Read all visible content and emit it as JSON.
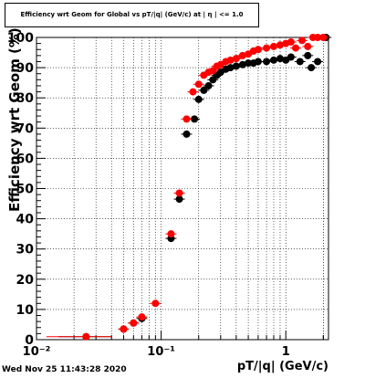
{
  "chart_data": {
    "type": "scatter",
    "title": "Efficiency wrt Geom for Global vs pT/|q| (GeV/c) at | η | <= 1.0",
    "xlabel": "pT/|q| (GeV/c)",
    "ylabel": "Efficiency wrt Geom (%)",
    "xscale": "log",
    "xlim": [
      0.01,
      2.2
    ],
    "ylim": [
      0,
      100
    ],
    "x_ticks": [
      "10⁻²",
      "10⁻¹",
      "1"
    ],
    "y_ticks": [
      "0",
      "10",
      "20",
      "30",
      "40",
      "50",
      "60",
      "70",
      "80",
      "90",
      "100"
    ],
    "grid": true,
    "timestamp": "Wed Nov 25 11:43:28 2020",
    "series": [
      {
        "color": "#000000",
        "points": [
          {
            "x": 0.025,
            "y": 1.0,
            "xerr": [
              0.015,
              0.04
            ]
          },
          {
            "x": 0.05,
            "y": 3.5
          },
          {
            "x": 0.06,
            "y": 5.5
          },
          {
            "x": 0.07,
            "y": 7.0
          },
          {
            "x": 0.12,
            "y": 33.5
          },
          {
            "x": 0.14,
            "y": 46.5
          },
          {
            "x": 0.16,
            "y": 68.0
          },
          {
            "x": 0.185,
            "y": 73.0
          },
          {
            "x": 0.2,
            "y": 79.5
          },
          {
            "x": 0.22,
            "y": 82.5
          },
          {
            "x": 0.24,
            "y": 84.0
          },
          {
            "x": 0.26,
            "y": 86.0
          },
          {
            "x": 0.28,
            "y": 87.5
          },
          {
            "x": 0.3,
            "y": 88.5
          },
          {
            "x": 0.33,
            "y": 89.5
          },
          {
            "x": 0.36,
            "y": 90.0
          },
          {
            "x": 0.4,
            "y": 90.5
          },
          {
            "x": 0.45,
            "y": 91.0
          },
          {
            "x": 0.5,
            "y": 91.5
          },
          {
            "x": 0.55,
            "y": 91.5
          },
          {
            "x": 0.6,
            "y": 92.0
          },
          {
            "x": 0.7,
            "y": 92.0
          },
          {
            "x": 0.8,
            "y": 92.5
          },
          {
            "x": 0.9,
            "y": 93.0
          },
          {
            "x": 1.0,
            "y": 92.5
          },
          {
            "x": 1.1,
            "y": 93.5
          },
          {
            "x": 1.3,
            "y": 92.0
          },
          {
            "x": 1.5,
            "y": 94.0
          },
          {
            "x": 1.6,
            "y": 90.0
          },
          {
            "x": 1.8,
            "y": 92.0
          },
          {
            "x": 2.1,
            "y": 100.0
          }
        ]
      },
      {
        "color": "#ff0000",
        "points": [
          {
            "x": 0.025,
            "y": 1.0,
            "xerr": [
              0.012,
              0.04
            ]
          },
          {
            "x": 0.05,
            "y": 3.5
          },
          {
            "x": 0.06,
            "y": 5.5
          },
          {
            "x": 0.07,
            "y": 7.5
          },
          {
            "x": 0.09,
            "y": 12.0
          },
          {
            "x": 0.12,
            "y": 35.0
          },
          {
            "x": 0.14,
            "y": 48.5
          },
          {
            "x": 0.16,
            "y": 73.0
          },
          {
            "x": 0.18,
            "y": 82.0
          },
          {
            "x": 0.2,
            "y": 84.5
          },
          {
            "x": 0.22,
            "y": 87.5
          },
          {
            "x": 0.24,
            "y": 88.5
          },
          {
            "x": 0.26,
            "y": 89.0
          },
          {
            "x": 0.28,
            "y": 90.5
          },
          {
            "x": 0.3,
            "y": 91.0
          },
          {
            "x": 0.33,
            "y": 92.0
          },
          {
            "x": 0.36,
            "y": 92.5
          },
          {
            "x": 0.4,
            "y": 93.0
          },
          {
            "x": 0.45,
            "y": 94.0
          },
          {
            "x": 0.5,
            "y": 94.5
          },
          {
            "x": 0.55,
            "y": 95.5
          },
          {
            "x": 0.6,
            "y": 96.0
          },
          {
            "x": 0.7,
            "y": 96.5
          },
          {
            "x": 0.8,
            "y": 97.0
          },
          {
            "x": 0.9,
            "y": 97.5
          },
          {
            "x": 1.0,
            "y": 98.0
          },
          {
            "x": 1.1,
            "y": 98.5
          },
          {
            "x": 1.2,
            "y": 96.5
          },
          {
            "x": 1.35,
            "y": 99.0
          },
          {
            "x": 1.5,
            "y": 97.0
          },
          {
            "x": 1.65,
            "y": 100.0
          },
          {
            "x": 1.8,
            "y": 100.0
          },
          {
            "x": 2.0,
            "y": 100.0
          }
        ]
      }
    ]
  }
}
